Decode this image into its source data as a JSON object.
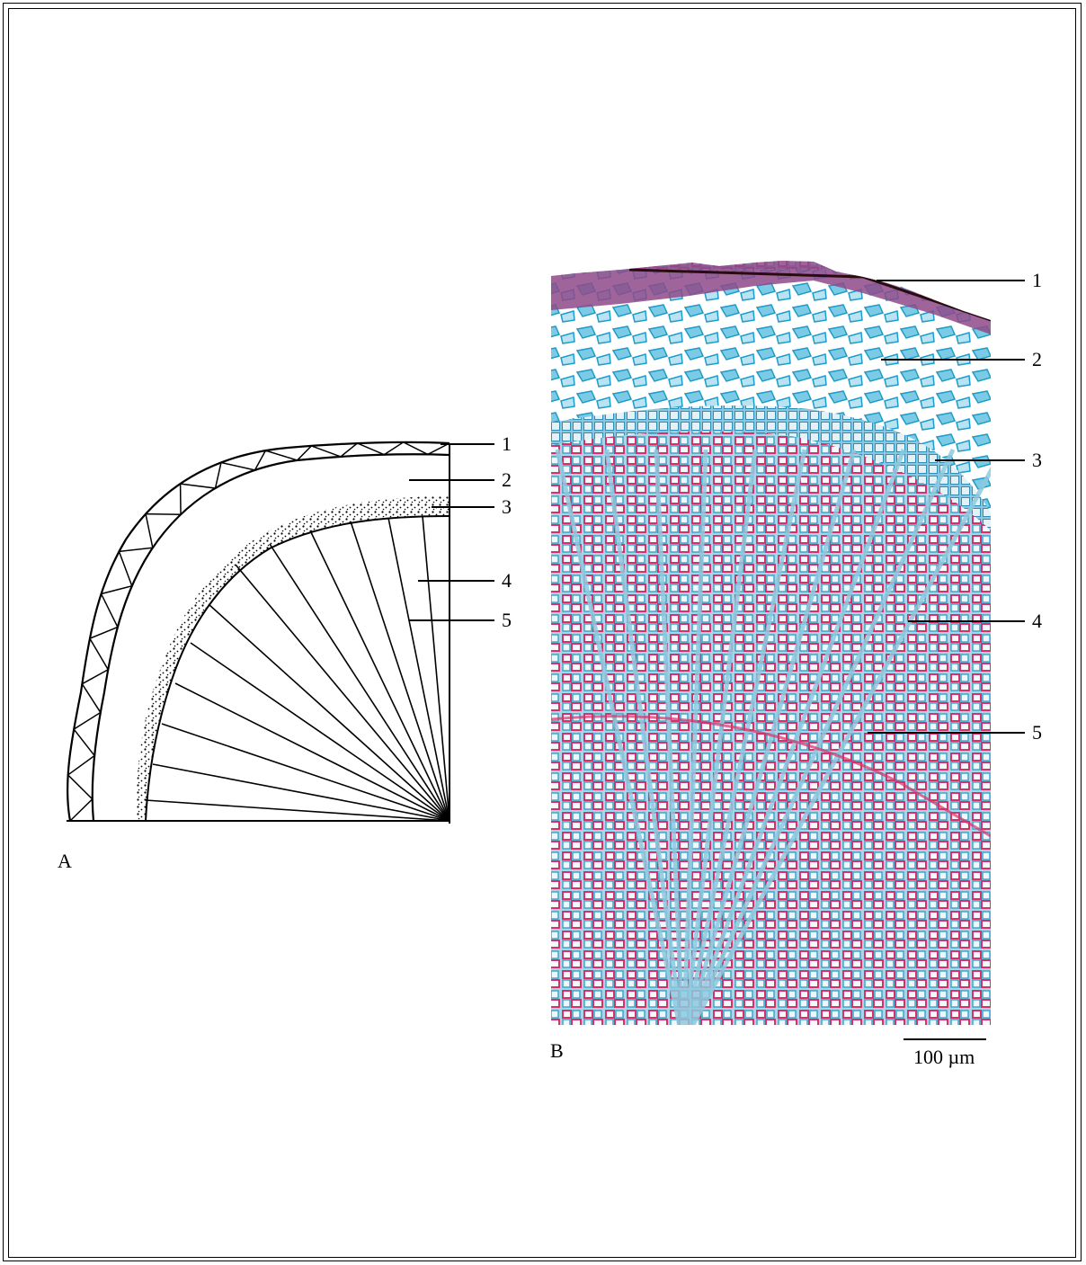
{
  "panelA": {
    "letter": "A",
    "labels": [
      "1",
      "2",
      "3",
      "4",
      "5"
    ]
  },
  "panelB": {
    "letter": "B",
    "labels": [
      "1",
      "2",
      "3",
      "4",
      "5"
    ],
    "scale_bar": "100 µm"
  },
  "colors": {
    "periderm": "#8e4a8a",
    "phloem_blue": "#3aaed0",
    "xylem_red": "#d8306a",
    "ray_blue": "#8fc9df"
  }
}
